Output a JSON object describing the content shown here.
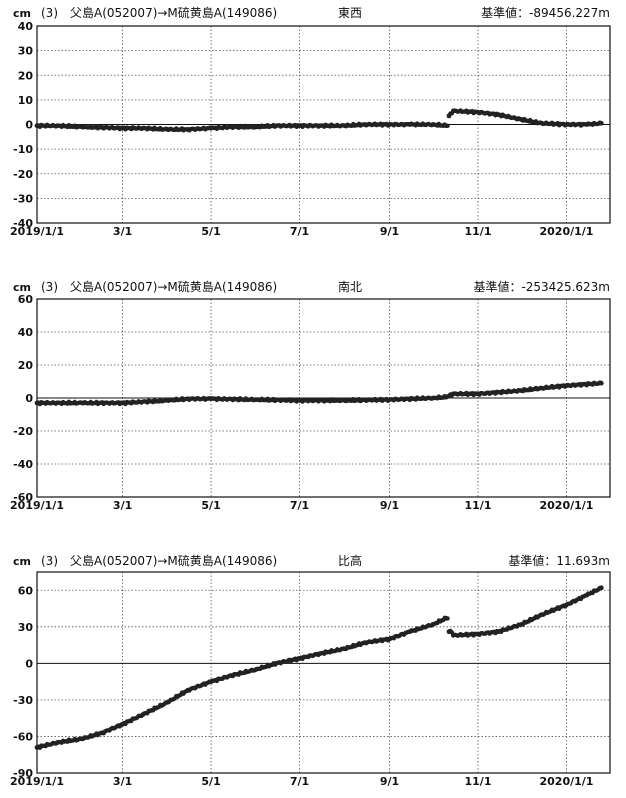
{
  "chart_data": [
    {
      "type": "scatter",
      "unit": "cm",
      "title_prefix": "(3)",
      "title": "父島A(052007)→M硫黄島A(149086)",
      "component": "東西",
      "baseline": "基準値：-89456.227m",
      "ylim": [
        -40,
        40
      ],
      "yticks": [
        40,
        30,
        20,
        10,
        0,
        -10,
        -20,
        -30,
        -40
      ],
      "xticks": [
        "2019/1/1",
        "3/1",
        "5/1",
        "7/1",
        "9/1",
        "11/1",
        "2020/1/1"
      ],
      "xlim": [
        "2019-01-01",
        "2020-01-31"
      ],
      "grid": true,
      "series": [
        {
          "x": [
            "2019-01-01",
            "2019-01-15",
            "2019-02-01",
            "2019-02-15",
            "2019-03-01",
            "2019-03-15",
            "2019-04-01",
            "2019-04-15",
            "2019-05-01",
            "2019-05-15",
            "2019-06-01",
            "2019-06-15",
            "2019-07-01",
            "2019-07-15",
            "2019-08-01",
            "2019-08-15",
            "2019-09-01",
            "2019-09-15",
            "2019-10-01",
            "2019-10-10",
            "2019-10-12",
            "2019-10-15",
            "2019-11-01",
            "2019-11-15",
            "2019-12-01",
            "2019-12-15",
            "2020-01-01",
            "2020-01-15",
            "2020-01-25"
          ],
          "y": [
            -0.5,
            -0.5,
            -1.0,
            -1.2,
            -1.5,
            -1.5,
            -2.0,
            -2.0,
            -1.5,
            -1.0,
            -1.0,
            -0.5,
            -0.5,
            -0.5,
            -0.5,
            0.0,
            0.0,
            0.0,
            0.0,
            -0.5,
            3.5,
            5.5,
            5.0,
            4.0,
            2.0,
            0.5,
            0.0,
            0.0,
            0.5
          ]
        }
      ]
    },
    {
      "type": "scatter",
      "unit": "cm",
      "title_prefix": "(3)",
      "title": "父島A(052007)→M硫黄島A(149086)",
      "component": "南北",
      "baseline": "基準値：-253425.623m",
      "ylim": [
        -60,
        60
      ],
      "yticks": [
        60,
        40,
        20,
        0,
        -20,
        -40,
        -60
      ],
      "xticks": [
        "2019/1/1",
        "3/1",
        "5/1",
        "7/1",
        "9/1",
        "11/1",
        "2020/1/1"
      ],
      "xlim": [
        "2019-01-01",
        "2020-01-31"
      ],
      "grid": true,
      "series": [
        {
          "x": [
            "2019-01-01",
            "2019-02-01",
            "2019-03-01",
            "2019-04-01",
            "2019-04-15",
            "2019-05-01",
            "2019-06-01",
            "2019-07-01",
            "2019-08-01",
            "2019-09-01",
            "2019-10-01",
            "2019-10-10",
            "2019-10-15",
            "2019-11-01",
            "2019-12-01",
            "2019-12-15",
            "2020-01-01",
            "2020-01-25"
          ],
          "y": [
            -3,
            -3,
            -3,
            -1.5,
            -0.5,
            -0.5,
            -1,
            -1.5,
            -1.5,
            -1,
            0,
            0.5,
            2.5,
            2.5,
            4.5,
            6,
            7.5,
            9
          ]
        }
      ]
    },
    {
      "type": "scatter",
      "unit": "cm",
      "title_prefix": "(3)",
      "title": "父島A(052007)→M硫黄島A(149086)",
      "component": "比高",
      "baseline": "基準値：11.693m",
      "ylim": [
        -90,
        75
      ],
      "yticks": [
        60,
        30,
        0,
        -30,
        -60,
        -90
      ],
      "xticks": [
        "2019/1/1",
        "3/1",
        "5/1",
        "7/1",
        "9/1",
        "11/1",
        "2020/1/1"
      ],
      "xlim": [
        "2019-01-01",
        "2020-01-31"
      ],
      "grid": true,
      "series": [
        {
          "x": [
            "2019-01-01",
            "2019-01-15",
            "2019-02-01",
            "2019-02-15",
            "2019-03-01",
            "2019-03-15",
            "2019-04-01",
            "2019-04-15",
            "2019-05-01",
            "2019-05-15",
            "2019-06-01",
            "2019-06-15",
            "2019-07-01",
            "2019-07-15",
            "2019-08-01",
            "2019-08-15",
            "2019-09-01",
            "2019-09-15",
            "2019-10-01",
            "2019-10-10",
            "2019-10-12",
            "2019-10-15",
            "2019-11-01",
            "2019-11-15",
            "2019-12-01",
            "2019-12-15",
            "2020-01-01",
            "2020-01-15",
            "2020-01-25"
          ],
          "y": [
            -69,
            -65,
            -62,
            -57,
            -50,
            -42,
            -32,
            -22,
            -15,
            -10,
            -5,
            0,
            4,
            8,
            12,
            17,
            20,
            26,
            32,
            37,
            26,
            23,
            24,
            26,
            32,
            40,
            48,
            56,
            62
          ]
        }
      ]
    }
  ]
}
